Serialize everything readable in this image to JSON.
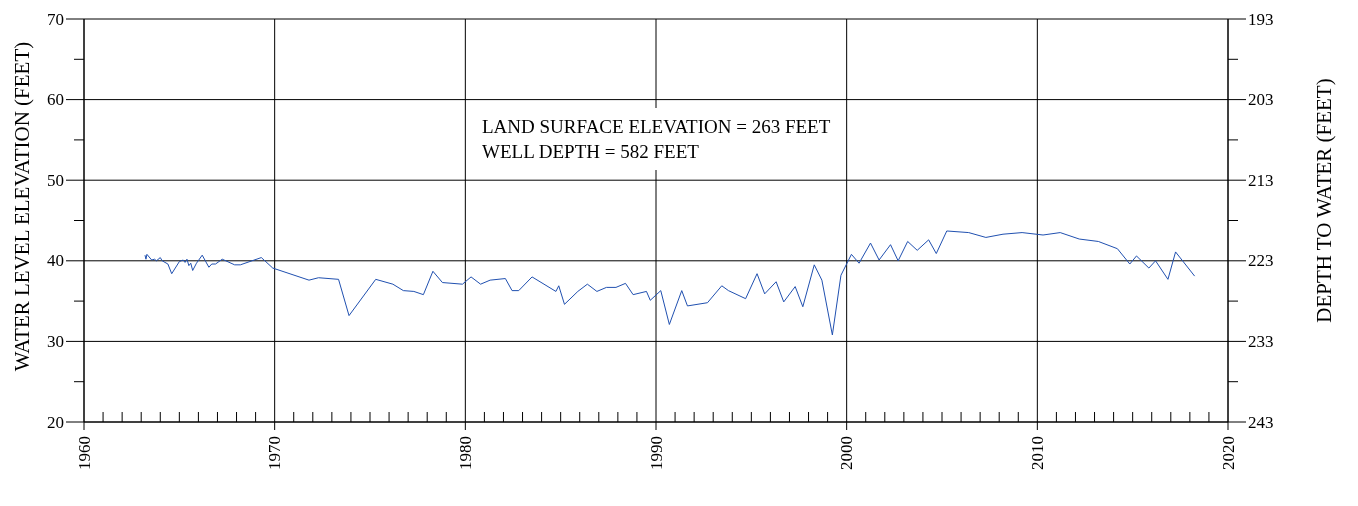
{
  "chart_data": {
    "type": "line",
    "ylabel": "WATER LEVEL ELEVATION (FEET)",
    "y2label": "DEPTH TO WATER (FEET)",
    "annotations": [
      "LAND SURFACE ELEVATION = 263 FEET",
      "WELL DEPTH = 582 FEET"
    ],
    "x": [
      1963.2,
      1963.25,
      1963.3,
      1963.55,
      1963.7,
      1963.8,
      1964.0,
      1964.1,
      1964.4,
      1964.6,
      1965.0,
      1965.2,
      1965.3,
      1965.4,
      1965.5,
      1965.6,
      1965.7,
      1965.9,
      1966.2,
      1966.55,
      1966.7,
      1966.9,
      1967.25,
      1967.9,
      1968.2,
      1969.3,
      1969.9,
      1971.8,
      1972.3,
      1973.35,
      1973.9,
      1975.3,
      1976.2,
      1976.75,
      1977.3,
      1977.8,
      1978.3,
      1978.8,
      1979.85,
      1980.3,
      1980.8,
      1981.3,
      1982.1,
      1982.45,
      1982.8,
      1983.5,
      1984.75,
      1984.9,
      1985.2,
      1985.9,
      1986.4,
      1986.9,
      1987.4,
      1987.9,
      1988.4,
      1988.8,
      1989.5,
      1989.7,
      1990.25,
      1990.7,
      1991.35,
      1991.65,
      1992.7,
      1993.45,
      1993.8,
      1994.7,
      1995.3,
      1995.7,
      1996.3,
      1996.7,
      1997.3,
      1997.7,
      1998.3,
      1998.7,
      1999.25,
      1999.7,
      2000.25,
      2000.65,
      2001.25,
      2001.7,
      2002.3,
      2002.7,
      2003.2,
      2003.7,
      2004.3,
      2004.7,
      2005.25,
      2006.4,
      2007.3,
      2008.2,
      2009.2,
      2010.3,
      2011.2,
      2012.2,
      2013.2,
      2014.2,
      2014.85,
      2015.2,
      2015.85,
      2016.2,
      2016.85,
      2017.25,
      2018.25
    ],
    "series": [
      {
        "color": "#2050b0",
        "values": [
          40.7,
          40.2,
          40.8,
          40.1,
          40.2,
          40.0,
          40.4,
          40.0,
          39.6,
          38.4,
          39.9,
          40.1,
          39.8,
          40.2,
          39.4,
          39.7,
          38.8,
          39.7,
          40.7,
          39.2,
          39.6,
          39.6,
          40.2,
          39.5,
          39.5,
          40.4,
          39.1,
          37.6,
          37.9,
          37.7,
          33.2,
          37.7,
          37.1,
          36.3,
          36.2,
          35.8,
          38.7,
          37.3,
          37.1,
          38.0,
          37.1,
          37.6,
          37.8,
          36.3,
          36.3,
          38.0,
          36.2,
          36.9,
          34.6,
          36.2,
          37.1,
          36.2,
          36.7,
          36.7,
          37.2,
          35.8,
          36.2,
          35.1,
          36.3,
          32.1,
          36.3,
          34.4,
          34.8,
          36.9,
          36.3,
          35.3,
          38.4,
          35.9,
          37.4,
          34.9,
          36.8,
          34.3,
          39.5,
          37.6,
          30.8,
          38.2,
          40.8,
          39.7,
          42.2,
          40.1,
          42.0,
          40.0,
          42.4,
          41.3,
          42.6,
          40.9,
          43.7,
          43.5,
          42.9,
          43.3,
          43.5,
          43.2,
          43.5,
          42.7,
          42.4,
          41.5,
          39.6,
          40.6,
          39.1,
          40.0,
          37.7,
          41.1,
          38.1
        ]
      }
    ],
    "xlim": [
      1960,
      2020
    ],
    "xticks": [
      1960,
      {
        "value": 1961,
        "label": null
      },
      {
        "value": 1962,
        "label": null
      },
      {
        "value": 1963,
        "label": null
      },
      {
        "value": 1964,
        "label": null
      },
      {
        "value": 1965,
        "label": null
      },
      {
        "value": 1966,
        "label": null
      },
      {
        "value": 1967,
        "label": null
      },
      {
        "value": 1968,
        "label": null
      },
      {
        "value": 1969,
        "label": null
      },
      1970,
      {
        "value": 1971,
        "label": null
      },
      {
        "value": 1972,
        "label": null
      },
      {
        "value": 1973,
        "label": null
      },
      {
        "value": 1974,
        "label": null
      },
      {
        "value": 1975,
        "label": null
      },
      {
        "value": 1976,
        "label": null
      },
      {
        "value": 1977,
        "label": null
      },
      {
        "value": 1978,
        "label": null
      },
      {
        "value": 1979,
        "label": null
      },
      1980,
      {
        "value": 1981,
        "label": null
      },
      {
        "value": 1982,
        "label": null
      },
      {
        "value": 1983,
        "label": null
      },
      {
        "value": 1984,
        "label": null
      },
      {
        "value": 1985,
        "label": null
      },
      {
        "value": 1986,
        "label": null
      },
      {
        "value": 1987,
        "label": null
      },
      {
        "value": 1988,
        "label": null
      },
      {
        "value": 1989,
        "label": null
      },
      1990,
      {
        "value": 1991,
        "label": null
      },
      {
        "value": 1992,
        "label": null
      },
      {
        "value": 1993,
        "label": null
      },
      {
        "value": 1994,
        "label": null
      },
      {
        "value": 1995,
        "label": null
      },
      {
        "value": 1996,
        "label": null
      },
      {
        "value": 1997,
        "label": null
      },
      {
        "value": 1998,
        "label": null
      },
      {
        "value": 1999,
        "label": null
      },
      2000,
      {
        "value": 2001,
        "label": null
      },
      {
        "value": 2002,
        "label": null
      },
      {
        "value": 2003,
        "label": null
      },
      {
        "value": 2004,
        "label": null
      },
      {
        "value": 2005,
        "label": null
      },
      {
        "value": 2006,
        "label": null
      },
      {
        "value": 2007,
        "label": null
      },
      {
        "value": 2008,
        "label": null
      },
      {
        "value": 2009,
        "label": null
      },
      2010,
      {
        "value": 2011,
        "label": null
      },
      {
        "value": 2012,
        "label": null
      },
      {
        "value": 2013,
        "label": null
      },
      {
        "value": 2014,
        "label": null
      },
      {
        "value": 2015,
        "label": null
      },
      {
        "value": 2016,
        "label": null
      },
      {
        "value": 2017,
        "label": null
      },
      {
        "value": 2018,
        "label": null
      },
      {
        "value": 2019,
        "label": null
      },
      2020
    ],
    "ylim": [
      20,
      70
    ],
    "yticks": [
      20,
      {
        "value": 25,
        "label": null
      },
      30,
      {
        "value": 35,
        "label": null
      },
      40,
      {
        "value": 45,
        "label": null
      },
      50,
      {
        "value": 55,
        "label": null
      },
      60,
      {
        "value": 65,
        "label": null
      },
      70
    ],
    "y2lim": [
      243,
      193
    ],
    "y2ticks": [
      193,
      {
        "value": 198,
        "label": null
      },
      203,
      {
        "value": 208,
        "label": null
      },
      213,
      {
        "value": 218,
        "label": null
      },
      223,
      {
        "value": 228,
        "label": null
      },
      233,
      {
        "value": 238,
        "label": null
      },
      243
    ],
    "grid": true,
    "marker": "none",
    "line_style": "solid"
  }
}
